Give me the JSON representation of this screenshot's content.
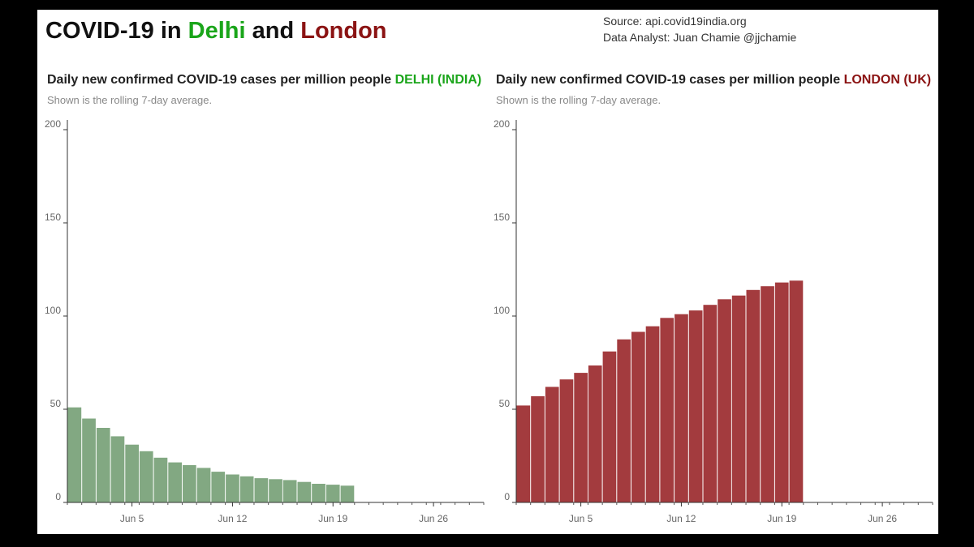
{
  "header": {
    "title_parts": [
      {
        "text": "COVID-19 in ",
        "color": "#111111"
      },
      {
        "text": "Delhi",
        "color": "#1aa51a"
      },
      {
        "text": " and ",
        "color": "#111111"
      },
      {
        "text": "London",
        "color": "#8b1313"
      }
    ],
    "source_line": "Source: api.covid19india.org",
    "analyst_line": "Data Analyst:  Juan Chamie @jjchamie"
  },
  "chart_data": [
    {
      "type": "bar",
      "title": "Daily new confirmed COVID-19 cases per million people",
      "title_highlight": "DELHI (INDIA)",
      "highlight_color": "#1aa51a",
      "subtitle": "Shown is the rolling 7-day average.",
      "bar_color": "#82a882",
      "x": [
        "2021-06-01",
        "2021-06-02",
        "2021-06-03",
        "2021-06-04",
        "2021-06-05",
        "2021-06-06",
        "2021-06-07",
        "2021-06-08",
        "2021-06-09",
        "2021-06-10",
        "2021-06-11",
        "2021-06-12",
        "2021-06-13",
        "2021-06-14",
        "2021-06-15",
        "2021-06-16",
        "2021-06-17",
        "2021-06-18",
        "2021-06-19",
        "2021-06-20"
      ],
      "values": [
        51,
        45,
        40,
        35.5,
        31,
        27.5,
        24,
        21.5,
        20,
        18.5,
        16.5,
        15,
        14,
        13,
        12.5,
        12,
        11,
        10,
        9.5,
        9
      ],
      "x_range": [
        "2021-06-01",
        "2021-06-30"
      ],
      "x_ticks": [
        "Jun 5",
        "Jun 12",
        "Jun 19",
        "Jun 26"
      ],
      "x_tick_dates": [
        "2021-06-05",
        "2021-06-12",
        "2021-06-19",
        "2021-06-26"
      ],
      "y_ticks": [
        "0",
        "50",
        "100",
        "150",
        "200"
      ],
      "ylim": [
        0,
        200
      ],
      "xlabel": "",
      "ylabel": "",
      "grid": false
    },
    {
      "type": "bar",
      "title": "Daily new confirmed COVID-19 cases per million people",
      "title_highlight": "LONDON (UK)",
      "highlight_color": "#8b1313",
      "subtitle": "Shown is the rolling 7-day average.",
      "bar_color": "#a33b3e",
      "x": [
        "2021-06-01",
        "2021-06-02",
        "2021-06-03",
        "2021-06-04",
        "2021-06-05",
        "2021-06-06",
        "2021-06-07",
        "2021-06-08",
        "2021-06-09",
        "2021-06-10",
        "2021-06-11",
        "2021-06-12",
        "2021-06-13",
        "2021-06-14",
        "2021-06-15",
        "2021-06-16",
        "2021-06-17",
        "2021-06-18",
        "2021-06-19",
        "2021-06-20"
      ],
      "values": [
        52,
        57,
        62,
        66,
        69.5,
        73.5,
        81,
        87.5,
        91.5,
        94.5,
        99,
        101,
        103,
        106,
        109,
        111,
        114,
        116,
        118,
        119
      ],
      "x_range": [
        "2021-06-01",
        "2021-06-30"
      ],
      "x_ticks": [
        "Jun 5",
        "Jun 12",
        "Jun 19",
        "Jun 26"
      ],
      "x_tick_dates": [
        "2021-06-05",
        "2021-06-12",
        "2021-06-19",
        "2021-06-26"
      ],
      "y_ticks": [
        "0",
        "50",
        "100",
        "150",
        "200"
      ],
      "ylim": [
        0,
        200
      ],
      "xlabel": "",
      "ylabel": "",
      "grid": false
    }
  ]
}
